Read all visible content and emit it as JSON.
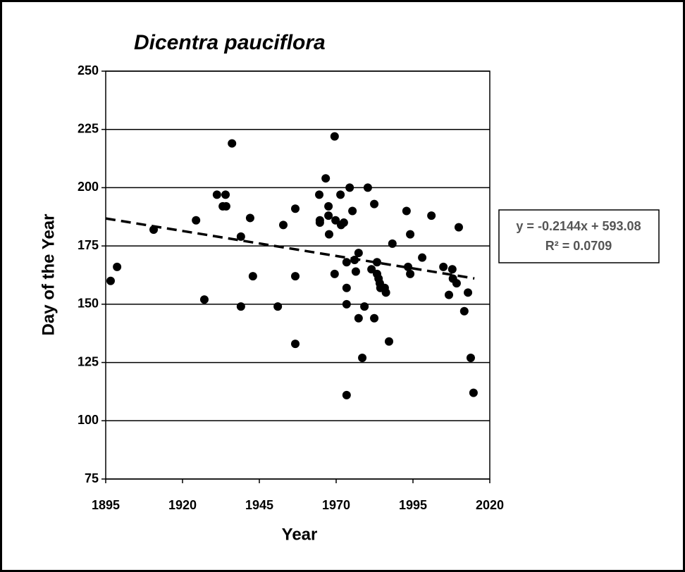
{
  "chart_data": {
    "type": "scatter",
    "title": "Dicentra pauciflora",
    "x_label": "Year",
    "y_label": "Day of the Year",
    "xlim": [
      1895,
      2020
    ],
    "xticks": [
      1895,
      1920,
      1945,
      1970,
      1995,
      2020
    ],
    "ylim": [
      75,
      250
    ],
    "yticks": [
      75,
      100,
      125,
      150,
      175,
      200,
      225,
      250
    ],
    "grid": true,
    "color": "#000000",
    "x": [
      1896.6,
      1898.7,
      1910.6,
      1924.4,
      1927.1,
      1931.2,
      1933.1,
      1934.0,
      1934.2,
      1936.1,
      1939.0,
      1939.0,
      1942.0,
      1942.9,
      1951.0,
      1952.8,
      1956.7,
      1956.7,
      1956.7,
      1964.5,
      1964.7,
      1964.7,
      1966.6,
      1967.5,
      1967.5,
      1967.7,
      1969.5,
      1969.5,
      1969.8,
      1971.4,
      1971.6,
      1972.5,
      1973.4,
      1973.4,
      1973.4,
      1973.4,
      1974.4,
      1975.3,
      1976.0,
      1976.4,
      1977.3,
      1977.3,
      1978.5,
      1979.2,
      1980.3,
      1981.5,
      1982.4,
      1982.4,
      1983.3,
      1983.3,
      1983.8,
      1984.2,
      1984.4,
      1985.8,
      1986.2,
      1987.2,
      1988.3,
      1992.9,
      1993.4,
      1994.1,
      1994.1,
      1998.0,
      2001.0,
      2004.9,
      2006.7,
      2007.8,
      2008.0,
      2009.2,
      2009.9,
      2011.7,
      2012.9,
      2013.8,
      2014.7
    ],
    "values": [
      160,
      166,
      182,
      186,
      152,
      197,
      192,
      197,
      192,
      219,
      179,
      149,
      187,
      162,
      149,
      184,
      191,
      162,
      133,
      197,
      186,
      185,
      204,
      192,
      188,
      180,
      222,
      163,
      186,
      197,
      184,
      185,
      168,
      157,
      150,
      111,
      200,
      190,
      169,
      164,
      172,
      144,
      127,
      149,
      200,
      165,
      193,
      144,
      168,
      163,
      161,
      159,
      157,
      157,
      155,
      134,
      176,
      190,
      166,
      163,
      180,
      170,
      188,
      166,
      154,
      165,
      161,
      159,
      183,
      147,
      155,
      127,
      112
    ],
    "trendline": {
      "slope": -0.2144,
      "intercept": 593.08,
      "x_range": [
        1895,
        2015
      ],
      "equation": "y = -0.2144x + 593.08",
      "r2": "R² = 0.0709"
    }
  }
}
